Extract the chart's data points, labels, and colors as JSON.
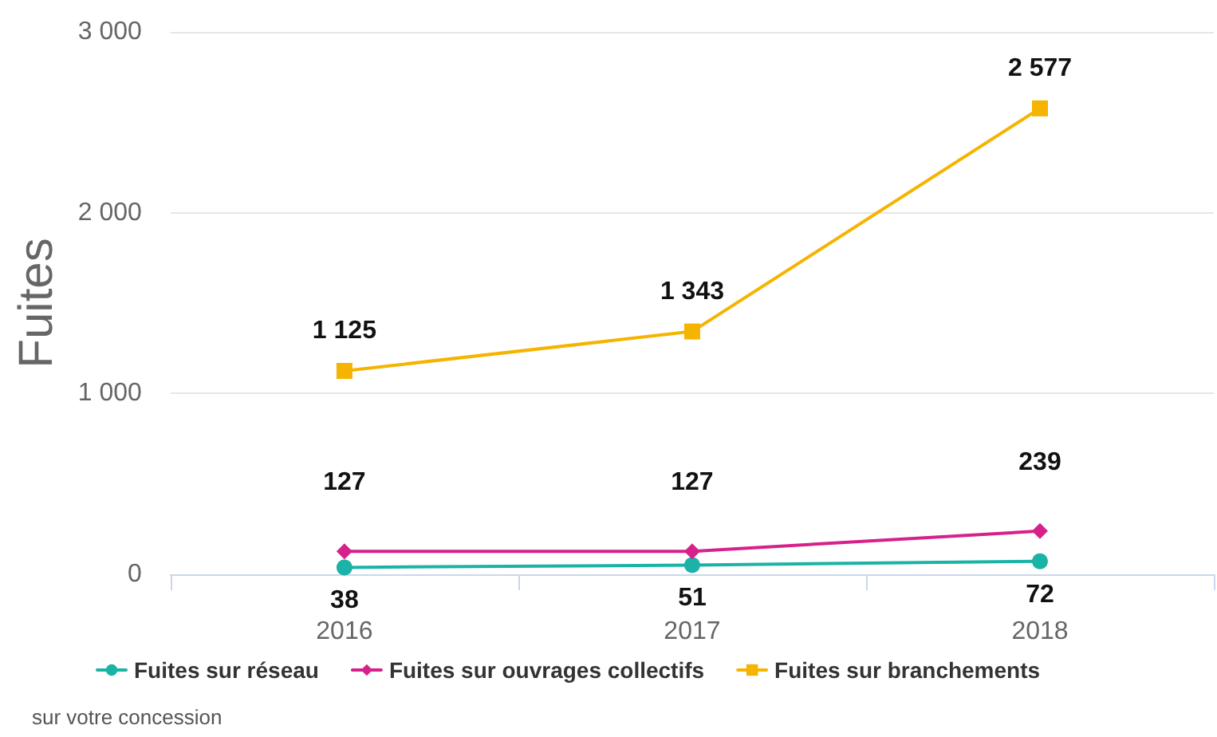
{
  "chart_data": {
    "type": "line",
    "ylabel": "Fuites",
    "categories": [
      "2016",
      "2017",
      "2018"
    ],
    "series": [
      {
        "name": "Fuites sur réseau",
        "color": "#1ab3a6",
        "values": [
          38,
          51,
          72
        ],
        "marker": "circle"
      },
      {
        "name": "Fuites sur ouvrages collectifs",
        "color": "#d6218b",
        "values": [
          127,
          127,
          239
        ],
        "marker": "diamond"
      },
      {
        "name": "Fuites sur branchements",
        "color": "#f5b400",
        "values": [
          1125,
          1343,
          2577
        ],
        "marker": "square"
      }
    ],
    "ylim": [
      0,
      3000
    ],
    "yticks": [
      {
        "value": 0,
        "label": "0"
      },
      {
        "value": 1000,
        "label": "1 000"
      },
      {
        "value": 2000,
        "label": "2 000"
      },
      {
        "value": 3000,
        "label": "3 000"
      }
    ],
    "grid": "y",
    "legend": "bottom left",
    "data_labels": true,
    "annotations": [
      "sur votre concession"
    ]
  }
}
